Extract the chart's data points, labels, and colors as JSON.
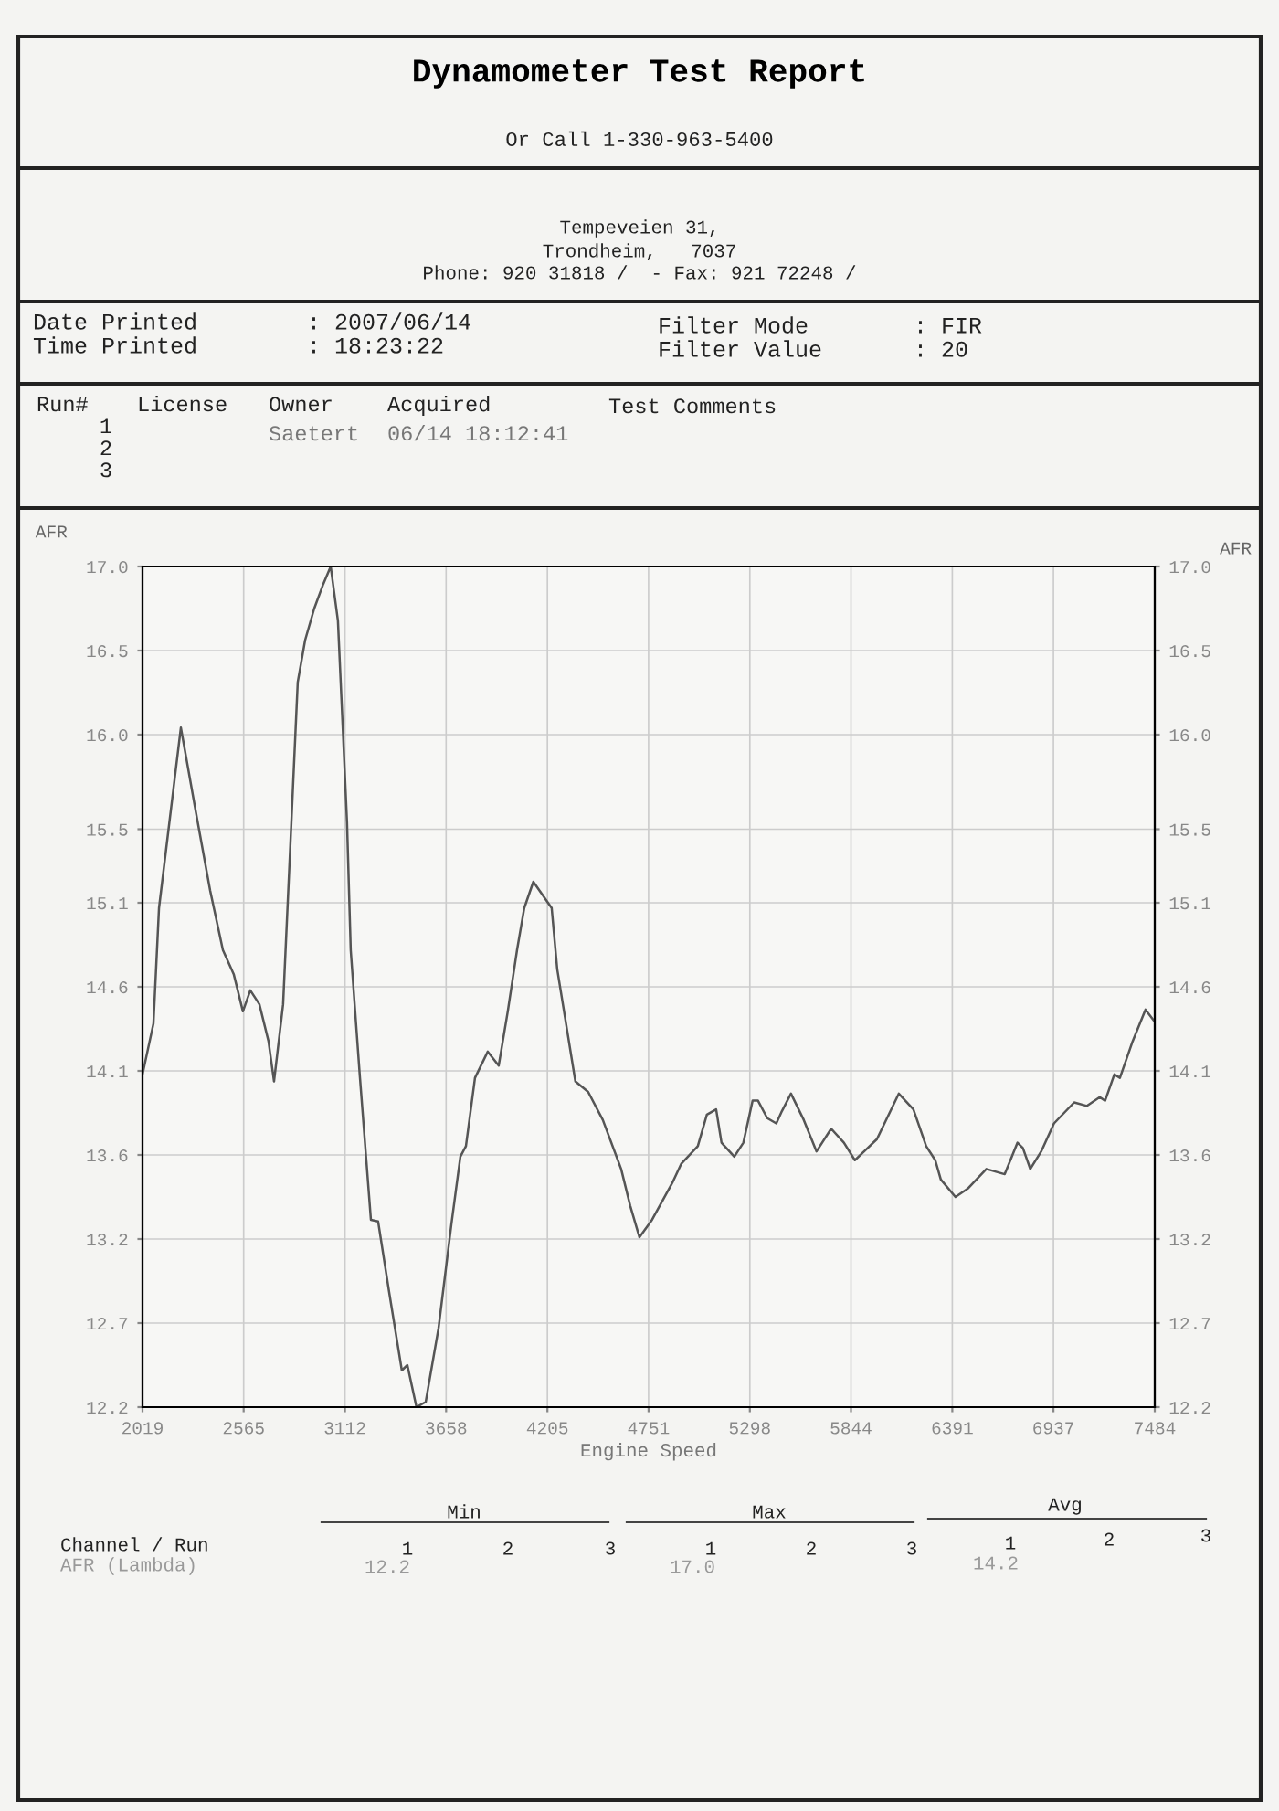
{
  "chart_data": {
    "type": "line",
    "title": "Dynamometer Test Report",
    "xlabel": "Engine Speed",
    "ylabel": "AFR",
    "y2label": "AFR",
    "x": [
      2019,
      2078,
      2108,
      2226,
      2305,
      2384,
      2453,
      2512,
      2561,
      2601,
      2650,
      2699,
      2729,
      2778,
      2857,
      2897,
      2946,
      2995,
      3035,
      3074,
      3123,
      3143,
      3193,
      3252,
      3291,
      3350,
      3419,
      3449,
      3498,
      3548,
      3617,
      3686,
      3735,
      3765,
      3814,
      3883,
      3942,
      3991,
      4041,
      4080,
      4129,
      4228,
      4258,
      4356,
      4425,
      4504,
      4603,
      4652,
      4702,
      4770,
      4879,
      4928,
      5017,
      5066,
      5116,
      5145,
      5214,
      5263,
      5313,
      5342,
      5392,
      5441,
      5471,
      5520,
      5589,
      5658,
      5737,
      5806,
      5865,
      5915,
      5984,
      6102,
      6181,
      6250,
      6299,
      6329,
      6408,
      6477,
      6575,
      6674,
      6743,
      6772,
      6812,
      6871,
      6940,
      7049,
      7118,
      7187,
      7216,
      7266,
      7296,
      7365,
      7434,
      7484
    ],
    "series": [
      {
        "color": "#555555",
        "values": [
          14.1,
          14.39,
          15.05,
          16.08,
          15.61,
          15.15,
          14.81,
          14.67,
          14.46,
          14.58,
          14.5,
          14.29,
          14.06,
          14.5,
          16.34,
          16.58,
          16.76,
          16.9,
          17.0,
          16.69,
          15.54,
          14.81,
          14.08,
          13.27,
          13.26,
          12.86,
          12.41,
          12.44,
          12.2,
          12.23,
          12.65,
          13.24,
          13.63,
          13.69,
          14.08,
          14.23,
          14.15,
          14.46,
          14.81,
          15.05,
          15.2,
          15.05,
          14.7,
          14.06,
          14.0,
          13.84,
          13.56,
          13.35,
          13.17,
          13.27,
          13.48,
          13.59,
          13.69,
          13.87,
          13.9,
          13.71,
          13.63,
          13.71,
          13.95,
          13.95,
          13.85,
          13.82,
          13.89,
          13.99,
          13.84,
          13.66,
          13.79,
          13.71,
          13.61,
          13.66,
          13.73,
          13.99,
          13.9,
          13.69,
          13.61,
          13.5,
          13.4,
          13.45,
          13.56,
          13.53,
          13.71,
          13.68,
          13.56,
          13.66,
          13.82,
          13.94,
          13.92,
          13.97,
          13.95,
          14.1,
          14.08,
          14.29,
          14.47,
          14.4
        ]
      }
    ],
    "xlim": [
      2019,
      7484
    ],
    "xticks": [
      2019,
      2565,
      3112,
      3658,
      4205,
      4751,
      5298,
      5844,
      6391,
      6937,
      7484
    ],
    "ylim": [
      12.2,
      17.0
    ],
    "yticks": [
      {
        "value": 12.2,
        "label": "12.2"
      },
      {
        "value": 12.68,
        "label": "12.7"
      },
      {
        "value": 13.16,
        "label": "13.2"
      },
      {
        "value": 13.64,
        "label": "13.6"
      },
      {
        "value": 14.12,
        "label": "14.1"
      },
      {
        "value": 14.6,
        "label": "14.6"
      },
      {
        "value": 15.08,
        "label": "15.1"
      },
      {
        "value": 15.5,
        "label": "15.5"
      },
      {
        "value": 16.04,
        "label": "16.0"
      },
      {
        "value": 16.52,
        "label": "16.5"
      },
      {
        "value": 17.0,
        "label": "17.0"
      }
    ],
    "y2lim": [
      12.2,
      17.0
    ],
    "y2ticks": [
      {
        "value": 12.2,
        "label": "12.2"
      },
      {
        "value": 12.68,
        "label": "12.7"
      },
      {
        "value": 13.16,
        "label": "13.2"
      },
      {
        "value": 13.64,
        "label": "13.6"
      },
      {
        "value": 14.12,
        "label": "14.1"
      },
      {
        "value": 14.6,
        "label": "14.6"
      },
      {
        "value": 15.08,
        "label": "15.1"
      },
      {
        "value": 15.5,
        "label": "15.5"
      },
      {
        "value": 16.04,
        "label": "16.0"
      },
      {
        "value": 16.52,
        "label": "16.5"
      },
      {
        "value": 17.0,
        "label": "17.0"
      }
    ],
    "grid": true,
    "marker": "none",
    "line_style": "solid",
    "annotations": [
      "Or Call 1-330-963-5400",
      "Tempeveien 31,",
      "Trondheim,   7037",
      "Phone: 920 31818 /  - Fax: 921 72248 /",
      "Date Printed",
      ": 2007/06/14",
      "Time Printed",
      ": 18:23:22",
      "Filter Mode",
      ": FIR",
      "Filter Value",
      ": 20",
      "Run#",
      "License",
      "Owner",
      "Acquired",
      "Test Comments",
      "1",
      "2",
      "3",
      "Saetert",
      "06/14 18:12:41",
      "Min",
      "Max",
      "Avg",
      "Channel / Run",
      "1",
      "2",
      "3",
      "1",
      "2",
      "3",
      "1",
      "2",
      "3",
      "AFR (Lambda)",
      "12.2",
      "17.0",
      "14.2"
    ]
  }
}
